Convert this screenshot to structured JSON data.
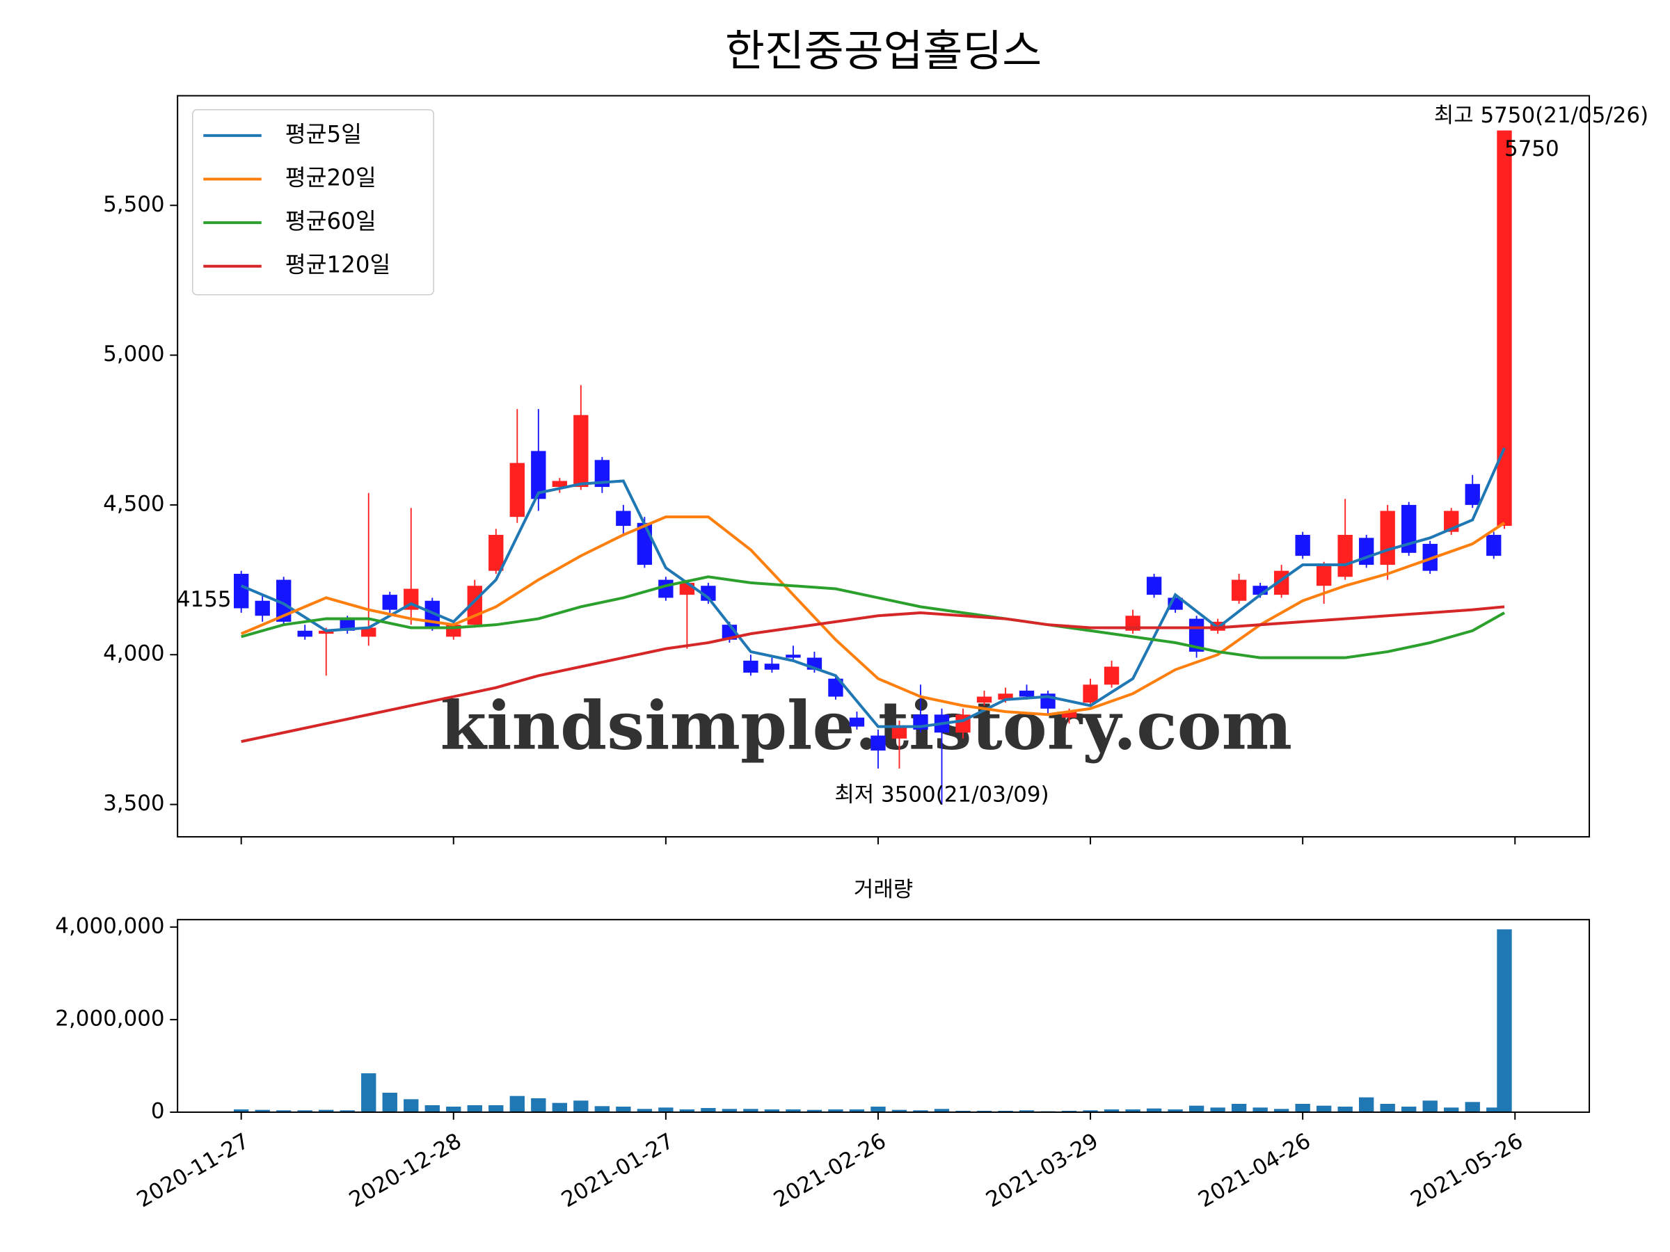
{
  "chart_data": [
    {
      "type": "candlestick",
      "title": "한진중공업홀딩스",
      "x": [
        0,
        2,
        4,
        6,
        8,
        10,
        12,
        14,
        16,
        18,
        20,
        22,
        24,
        26,
        28,
        30,
        32,
        34,
        36,
        38,
        40,
        42,
        44,
        46,
        48,
        50,
        52,
        54,
        56,
        58,
        60,
        62,
        64,
        66,
        68,
        70,
        72,
        74,
        76,
        78,
        80,
        82,
        84,
        86,
        88,
        90,
        92,
        94,
        96,
        98,
        100,
        102,
        104,
        106,
        108,
        110,
        112,
        114,
        116,
        118,
        119
      ],
      "ohlc": [
        [
          4270,
          4280,
          4140,
          4155
        ],
        [
          4180,
          4200,
          4110,
          4130
        ],
        [
          4250,
          4260,
          4100,
          4110
        ],
        [
          4080,
          4100,
          4050,
          4060
        ],
        [
          4070,
          4090,
          3930,
          4080
        ],
        [
          4120,
          4130,
          4070,
          4080
        ],
        [
          4060,
          4540,
          4030,
          4090
        ],
        [
          4200,
          4210,
          4140,
          4150
        ],
        [
          4150,
          4490,
          4100,
          4220
        ],
        [
          4180,
          4190,
          4080,
          4090
        ],
        [
          4060,
          4110,
          4050,
          4100
        ],
        [
          4100,
          4250,
          4090,
          4230
        ],
        [
          4280,
          4420,
          4270,
          4400
        ],
        [
          4460,
          4820,
          4440,
          4640
        ],
        [
          4680,
          4820,
          4480,
          4520
        ],
        [
          4560,
          4590,
          4540,
          4580
        ],
        [
          4560,
          4900,
          4550,
          4800
        ],
        [
          4650,
          4660,
          4540,
          4560
        ],
        [
          4480,
          4500,
          4400,
          4430
        ],
        [
          4440,
          4460,
          4290,
          4300
        ],
        [
          4250,
          4260,
          4180,
          4190
        ],
        [
          4200,
          4250,
          4020,
          4240
        ],
        [
          4230,
          4240,
          4170,
          4180
        ],
        [
          4100,
          4110,
          4040,
          4050
        ],
        [
          3980,
          4000,
          3930,
          3940
        ],
        [
          3970,
          3990,
          3940,
          3950
        ],
        [
          4000,
          4030,
          3980,
          3990
        ],
        [
          3990,
          4010,
          3940,
          3950
        ],
        [
          3920,
          3930,
          3850,
          3860
        ],
        [
          3790,
          3810,
          3750,
          3760
        ],
        [
          3730,
          3750,
          3620,
          3680
        ],
        [
          3720,
          3780,
          3620,
          3760
        ],
        [
          3800,
          3900,
          3740,
          3750
        ],
        [
          3800,
          3820,
          3500,
          3740
        ],
        [
          3740,
          3820,
          3720,
          3800
        ],
        [
          3840,
          3880,
          3830,
          3860
        ],
        [
          3850,
          3890,
          3840,
          3870
        ],
        [
          3880,
          3900,
          3850,
          3860
        ],
        [
          3870,
          3880,
          3800,
          3820
        ],
        [
          3790,
          3820,
          3770,
          3810
        ],
        [
          3840,
          3920,
          3830,
          3900
        ],
        [
          3900,
          3980,
          3890,
          3960
        ],
        [
          4080,
          4150,
          4070,
          4130
        ],
        [
          4260,
          4270,
          4190,
          4200
        ],
        [
          4190,
          4200,
          4140,
          4150
        ],
        [
          4120,
          4130,
          3990,
          4010
        ],
        [
          4080,
          4120,
          4070,
          4110
        ],
        [
          4180,
          4270,
          4170,
          4250
        ],
        [
          4230,
          4240,
          4190,
          4200
        ],
        [
          4200,
          4300,
          4190,
          4280
        ],
        [
          4400,
          4410,
          4320,
          4330
        ],
        [
          4230,
          4310,
          4170,
          4300
        ],
        [
          4260,
          4520,
          4250,
          4400
        ],
        [
          4390,
          4400,
          4290,
          4300
        ],
        [
          4300,
          4500,
          4250,
          4480
        ],
        [
          4500,
          4510,
          4330,
          4340
        ],
        [
          4370,
          4380,
          4270,
          4280
        ],
        [
          4410,
          4490,
          4400,
          4480
        ],
        [
          4570,
          4600,
          4490,
          4500
        ],
        [
          4400,
          4410,
          4320,
          4330
        ],
        [
          4430,
          5750,
          4420,
          5750
        ]
      ],
      "up_color": "#ff2020",
      "down_color": "#1515ff",
      "series": [
        {
          "name": "평균5일",
          "color": "#1f77b4",
          "x": [
            0,
            4,
            8,
            12,
            16,
            20,
            24,
            28,
            32,
            36,
            40,
            44,
            48,
            52,
            56,
            60,
            64,
            68,
            72,
            76,
            80,
            84,
            88,
            92,
            96,
            100,
            104,
            108,
            112,
            116,
            119
          ],
          "values": [
            4230,
            4170,
            4080,
            4090,
            4170,
            4110,
            4250,
            4540,
            4570,
            4580,
            4290,
            4190,
            4010,
            3980,
            3930,
            3760,
            3760,
            3780,
            3850,
            3860,
            3830,
            3920,
            4200,
            4090,
            4200,
            4300,
            4300,
            4350,
            4390,
            4450,
            4690
          ]
        },
        {
          "name": "평균20일",
          "color": "#ff7f0e",
          "x": [
            0,
            4,
            8,
            12,
            16,
            20,
            24,
            28,
            32,
            36,
            40,
            44,
            48,
            52,
            56,
            60,
            64,
            68,
            72,
            76,
            80,
            84,
            88,
            92,
            96,
            100,
            104,
            108,
            112,
            116,
            119
          ],
          "values": [
            4070,
            4130,
            4190,
            4150,
            4120,
            4100,
            4160,
            4250,
            4330,
            4400,
            4460,
            4460,
            4350,
            4200,
            4050,
            3920,
            3860,
            3830,
            3810,
            3800,
            3820,
            3870,
            3950,
            4000,
            4100,
            4180,
            4230,
            4270,
            4320,
            4370,
            4440
          ]
        },
        {
          "name": "평균60일",
          "color": "#2ca02c",
          "x": [
            0,
            4,
            8,
            12,
            16,
            20,
            24,
            28,
            32,
            36,
            40,
            44,
            48,
            52,
            56,
            60,
            64,
            68,
            72,
            76,
            80,
            84,
            88,
            92,
            96,
            100,
            104,
            108,
            112,
            116,
            119
          ],
          "values": [
            4060,
            4100,
            4120,
            4120,
            4090,
            4090,
            4100,
            4120,
            4160,
            4190,
            4230,
            4260,
            4240,
            4230,
            4220,
            4190,
            4160,
            4140,
            4120,
            4100,
            4080,
            4060,
            4040,
            4010,
            3990,
            3990,
            3990,
            4010,
            4040,
            4080,
            4140
          ]
        },
        {
          "name": "평균120일",
          "color": "#d62728",
          "x": [
            0,
            4,
            8,
            12,
            16,
            20,
            24,
            28,
            32,
            36,
            40,
            44,
            48,
            52,
            56,
            60,
            64,
            68,
            72,
            76,
            80,
            84,
            88,
            92,
            96,
            100,
            104,
            108,
            112,
            116,
            119
          ],
          "values": [
            3710,
            3740,
            3770,
            3800,
            3830,
            3860,
            3890,
            3930,
            3960,
            3990,
            4020,
            4040,
            4070,
            4090,
            4110,
            4130,
            4140,
            4130,
            4120,
            4100,
            4090,
            4090,
            4090,
            4090,
            4100,
            4110,
            4120,
            4130,
            4140,
            4150,
            4160
          ]
        }
      ],
      "xlim": [
        -6,
        127
      ],
      "xticks": [
        0,
        20,
        40,
        60,
        80,
        100,
        120
      ],
      "ylim": [
        3392,
        5866
      ],
      "yticks": [
        {
          "value": 3500,
          "label": "3,500"
        },
        {
          "value": 4000,
          "label": "4,000"
        },
        {
          "value": 4500,
          "label": "4,500"
        },
        {
          "value": 5000,
          "label": "5,000"
        },
        {
          "value": 5500,
          "label": "5,500"
        }
      ],
      "legend": "upper left",
      "annotations": [
        {
          "text": "최고 5750(21/05/26)",
          "color": "#ff0000",
          "x": 119,
          "y": 5750
        },
        {
          "text": "최저 3500(21/03/09)",
          "color": "#0000ff",
          "x": 66,
          "y": 3500
        }
      ],
      "first_close_label": 4155,
      "last_close_label": 5750,
      "watermark": "kindsimple.tistory.com"
    },
    {
      "type": "bar",
      "title": "거래량",
      "color": "#1f77b4",
      "x": [
        0,
        2,
        4,
        6,
        8,
        10,
        12,
        14,
        16,
        18,
        20,
        22,
        24,
        26,
        28,
        30,
        32,
        34,
        36,
        38,
        40,
        42,
        44,
        46,
        48,
        50,
        52,
        54,
        56,
        58,
        60,
        62,
        64,
        66,
        68,
        70,
        72,
        74,
        76,
        78,
        80,
        82,
        84,
        86,
        88,
        90,
        92,
        94,
        96,
        98,
        100,
        102,
        104,
        106,
        108,
        110,
        112,
        114,
        116,
        118,
        119
      ],
      "values": [
        60000,
        50000,
        40000,
        40000,
        50000,
        40000,
        840000,
        420000,
        280000,
        150000,
        120000,
        150000,
        150000,
        350000,
        300000,
        200000,
        250000,
        130000,
        120000,
        70000,
        100000,
        60000,
        90000,
        70000,
        70000,
        60000,
        60000,
        50000,
        60000,
        60000,
        120000,
        50000,
        40000,
        70000,
        30000,
        30000,
        30000,
        40000,
        20000,
        30000,
        40000,
        60000,
        60000,
        80000,
        60000,
        140000,
        100000,
        180000,
        100000,
        70000,
        180000,
        140000,
        120000,
        320000,
        180000,
        120000,
        250000,
        100000,
        220000,
        100000,
        3950000
      ],
      "xlim": [
        -6,
        127
      ],
      "xticks": [
        {
          "value": 0,
          "label": "2020-11-27"
        },
        {
          "value": 20,
          "label": "2020-12-28"
        },
        {
          "value": 40,
          "label": "2021-01-27"
        },
        {
          "value": 60,
          "label": "2021-02-26"
        },
        {
          "value": 80,
          "label": "2021-03-29"
        },
        {
          "value": 100,
          "label": "2021-04-26"
        },
        {
          "value": 120,
          "label": "2021-05-26"
        }
      ],
      "ylim": [
        0,
        4160000
      ],
      "yticks": [
        {
          "value": 0,
          "label": "0"
        },
        {
          "value": 2000000,
          "label": "2,000,000"
        },
        {
          "value": 4000000,
          "label": "4,000,000"
        }
      ]
    }
  ]
}
